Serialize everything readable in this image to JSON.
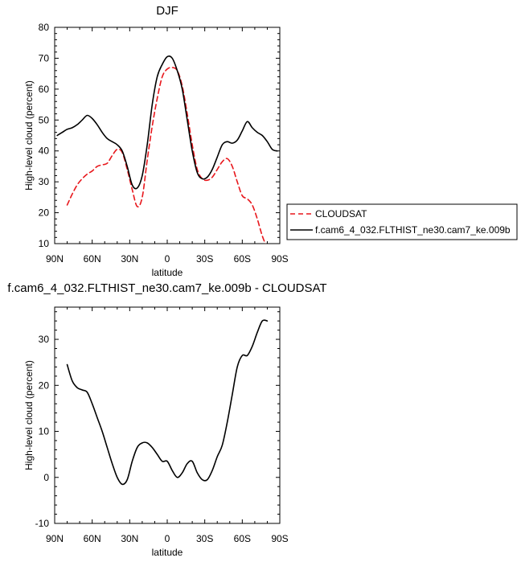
{
  "chart_data": [
    {
      "type": "line",
      "title": "DJF",
      "xlabel": "latitude",
      "ylabel": "High-level cloud (percent)",
      "xlim": [
        90,
        -90
      ],
      "ylim": [
        10,
        80
      ],
      "xticks": [
        90,
        60,
        30,
        0,
        -30,
        -60,
        -90
      ],
      "xtick_labels": [
        "90N",
        "60N",
        "30N",
        "0",
        "30S",
        "60S",
        "90S"
      ],
      "yticks": [
        10,
        20,
        30,
        40,
        50,
        60,
        70,
        80
      ],
      "ytick_labels": [
        "10",
        "20",
        "30",
        "40",
        "50",
        "60",
        "70",
        "80"
      ],
      "grid": false,
      "legend": "right",
      "series": [
        {
          "name": "CLOUDSAT",
          "color": "#e8171c",
          "dash": "dashed",
          "x": [
            80,
            76,
            72,
            68,
            64,
            60,
            56,
            52,
            48,
            44,
            40,
            36,
            32,
            28,
            24,
            20,
            16,
            12,
            8,
            4,
            0,
            -4,
            -8,
            -12,
            -16,
            -20,
            -24,
            -28,
            -32,
            -36,
            -40,
            -44,
            -48,
            -52,
            -56,
            -60,
            -64,
            -68,
            -72,
            -76,
            -80
          ],
          "y": [
            22.5,
            26,
            29,
            31,
            32.5,
            33.5,
            35,
            35.5,
            36,
            38.5,
            40.5,
            39.5,
            34,
            27.5,
            22,
            25,
            37,
            48,
            57,
            64,
            66.5,
            67,
            66,
            61,
            52,
            42,
            34,
            31,
            30.5,
            31.5,
            34,
            36.5,
            37.5,
            35,
            30,
            25.5,
            24.5,
            22.5,
            18,
            12.5,
            8.5
          ]
        },
        {
          "name": "f.cam6_4_032.FLTHIST_ne30.cam7_ke.009b",
          "color": "#000000",
          "dash": "solid",
          "x": [
            88,
            84,
            80,
            76,
            72,
            68,
            64,
            60,
            56,
            52,
            48,
            44,
            40,
            36,
            32,
            28,
            24,
            20,
            16,
            12,
            8,
            4,
            0,
            -4,
            -8,
            -12,
            -16,
            -20,
            -24,
            -28,
            -32,
            -36,
            -40,
            -44,
            -48,
            -52,
            -56,
            -60,
            -64,
            -68,
            -72,
            -76,
            -80,
            -84,
            -88
          ],
          "y": [
            45,
            46,
            47,
            47.5,
            48.5,
            50,
            51.5,
            50.5,
            48.5,
            46,
            44,
            43,
            42,
            40,
            35,
            29,
            28,
            32,
            42,
            55,
            64,
            68,
            70.5,
            70,
            66,
            60,
            50,
            40,
            33,
            31,
            31.5,
            34,
            38,
            42,
            43,
            42.5,
            43.5,
            46.5,
            49.5,
            47.5,
            46,
            45,
            43,
            40.5,
            40
          ]
        }
      ]
    },
    {
      "type": "line",
      "title": "f.cam6_4_032.FLTHIST_ne30.cam7_ke.009b - CLOUDSAT",
      "xlabel": "latitude",
      "ylabel": "High-level cloud (percent)",
      "xlim": [
        90,
        -90
      ],
      "ylim": [
        -10,
        37
      ],
      "xticks": [
        90,
        60,
        30,
        0,
        -30,
        -60,
        -90
      ],
      "xtick_labels": [
        "90N",
        "60N",
        "30N",
        "0",
        "30S",
        "60S",
        "90S"
      ],
      "yticks": [
        -10,
        0,
        10,
        20,
        30
      ],
      "ytick_labels": [
        "-10",
        "0",
        "10",
        "20",
        "30"
      ],
      "grid": false,
      "series": [
        {
          "color": "#000000",
          "dash": "solid",
          "x": [
            80,
            76,
            72,
            68,
            64,
            60,
            56,
            52,
            48,
            44,
            40,
            36,
            32,
            28,
            24,
            20,
            16,
            12,
            8,
            4,
            0,
            -4,
            -8,
            -12,
            -16,
            -20,
            -24,
            -28,
            -32,
            -36,
            -40,
            -44,
            -48,
            -52,
            -56,
            -60,
            -64,
            -68,
            -72,
            -76,
            -80
          ],
          "y": [
            24.5,
            21,
            19.5,
            19,
            18.5,
            16,
            13,
            10,
            6.5,
            3,
            0,
            -1.5,
            -0.5,
            3.5,
            6.5,
            7.5,
            7.5,
            6.5,
            5,
            3.5,
            3.5,
            1.5,
            0,
            1,
            3,
            3.5,
            1,
            -0.5,
            -0.5,
            1.5,
            4.5,
            7,
            12,
            18,
            24,
            26.5,
            26.5,
            28.5,
            31.5,
            34,
            34
          ]
        }
      ]
    }
  ]
}
